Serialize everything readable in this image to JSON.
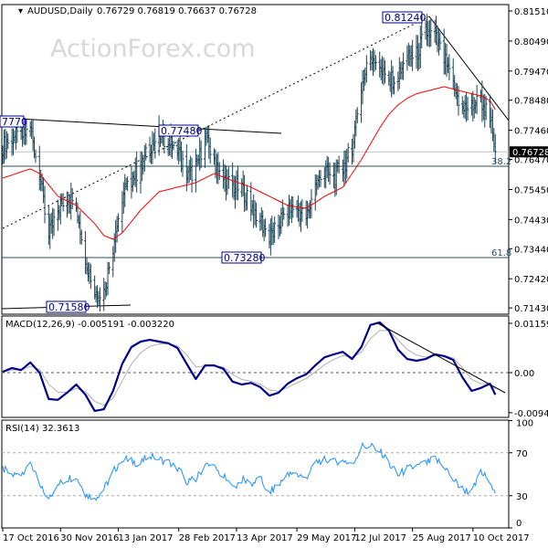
{
  "header": {
    "symbol": "AUDUSD,Daily",
    "ohlc": "0.76729 0.76819 0.76637 0.76728"
  },
  "watermark": "ActionForex.com",
  "colors": {
    "bars": "#1b4457",
    "ma": "#ff0000",
    "macd": "#00008b",
    "signal": "#b0b0b0",
    "rsi": "#1e90ff",
    "fib": "#2f4f4f"
  },
  "chart_data": [
    {
      "type": "ohlc-bar",
      "title": "AUDUSD,Daily",
      "ylim": [
        0.7143,
        0.8151
      ],
      "y_ticks": [
        "0.81510",
        "0.80490",
        "0.79470",
        "0.78480",
        "0.77460",
        "0.76470",
        "0.75450",
        "0.74430",
        "0.73440",
        "0.72420",
        "0.71430"
      ],
      "x_ticks": [
        "17 Oct 2016",
        "30 Nov 2016",
        "13 Jan 2017",
        "28 Feb 2017",
        "13 Apr 2017",
        "29 May 2017",
        "12 Jul 2017",
        "25 Aug 2017",
        "10 Oct 2017"
      ],
      "x_tick_dates": [
        "2016-10-17",
        "2016-11-30",
        "2017-01-13",
        "2017-02-28",
        "2017-04-13",
        "2017-05-29",
        "2017-07-12",
        "2017-08-25",
        "2017-10-10"
      ],
      "dates": [
        "2016-10-17",
        "2016-10-24",
        "2016-10-31",
        "2016-11-07",
        "2016-11-14",
        "2016-11-21",
        "2016-11-28",
        "2016-12-05",
        "2016-12-12",
        "2016-12-19",
        "2016-12-26",
        "2017-01-02",
        "2017-01-09",
        "2017-01-16",
        "2017-01-23",
        "2017-01-30",
        "2017-02-06",
        "2017-02-13",
        "2017-02-20",
        "2017-02-27",
        "2017-03-06",
        "2017-03-13",
        "2017-03-20",
        "2017-03-27",
        "2017-04-03",
        "2017-04-10",
        "2017-04-17",
        "2017-04-24",
        "2017-05-01",
        "2017-05-08",
        "2017-05-15",
        "2017-05-22",
        "2017-05-29",
        "2017-06-05",
        "2017-06-12",
        "2017-06-19",
        "2017-06-26",
        "2017-07-03",
        "2017-07-10",
        "2017-07-17",
        "2017-07-24",
        "2017-07-31",
        "2017-08-07",
        "2017-08-14",
        "2017-08-21",
        "2017-08-28",
        "2017-09-04",
        "2017-09-11",
        "2017-09-18",
        "2017-09-25",
        "2017-10-02",
        "2017-10-09",
        "2017-10-16",
        "2017-10-23",
        "2017-10-27"
      ],
      "close": [
        0.7692,
        0.7723,
        0.7723,
        0.7754,
        0.7599,
        0.7382,
        0.7475,
        0.7522,
        0.7491,
        0.732,
        0.7196,
        0.7196,
        0.7351,
        0.7522,
        0.7584,
        0.7615,
        0.7692,
        0.7723,
        0.7708,
        0.7692,
        0.7584,
        0.7615,
        0.7723,
        0.7646,
        0.7584,
        0.7553,
        0.7553,
        0.7491,
        0.7444,
        0.7376,
        0.7429,
        0.7475,
        0.7481,
        0.7444,
        0.7553,
        0.7599,
        0.7584,
        0.7615,
        0.7692,
        0.7894,
        0.8002,
        0.7971,
        0.7909,
        0.7925,
        0.7987,
        0.8002,
        0.808,
        0.8064,
        0.7987,
        0.7894,
        0.7816,
        0.7832,
        0.7847,
        0.7785,
        0.76728
      ],
      "last_price": "0.76728",
      "ma": [
        0.7584,
        0.7594,
        0.7605,
        0.7615,
        0.7599,
        0.756,
        0.7522,
        0.7506,
        0.7491,
        0.746,
        0.7429,
        0.7389,
        0.7376,
        0.7398,
        0.7436,
        0.7475,
        0.7506,
        0.7537,
        0.7545,
        0.7553,
        0.756,
        0.7568,
        0.7584,
        0.7599,
        0.7587,
        0.7575,
        0.7564,
        0.7553,
        0.7537,
        0.7522,
        0.7506,
        0.7491,
        0.7486,
        0.7481,
        0.7501,
        0.7522,
        0.7537,
        0.7553,
        0.7599,
        0.7646,
        0.77,
        0.7754,
        0.78,
        0.7832,
        0.7855,
        0.787,
        0.7878,
        0.7886,
        0.7894,
        0.7886,
        0.7878,
        0.787,
        0.7863,
        0.7847,
        0.7816
      ],
      "annotations": {
        "swing_labels": [
          "7770",
          "0.77480",
          "0.73280",
          "0.71580",
          "0.81240"
        ],
        "fib_labels": [
          "38.2",
          "61.8"
        ]
      }
    },
    {
      "type": "line",
      "title": "MACD(12,26,9) -0.005191 -0.003220",
      "y_ticks": [
        "0.01159",
        "0.00",
        "-0.009408"
      ],
      "ylim": [
        -0.009408,
        0.01159
      ],
      "macd": [
        0.0002,
        0.0011,
        0.0006,
        0.0024,
        0.0,
        -0.0062,
        -0.0064,
        -0.0047,
        -0.0028,
        -0.0052,
        -0.009,
        -0.0086,
        -0.0043,
        0.0021,
        0.006,
        0.0073,
        0.0077,
        0.0073,
        0.0069,
        0.0058,
        0.0021,
        -0.0015,
        0.0017,
        0.0017,
        0.0009,
        -0.0021,
        -0.0028,
        -0.0024,
        -0.0034,
        -0.0054,
        -0.0047,
        -0.0026,
        -0.0013,
        -0.0004,
        0.0017,
        0.0036,
        0.0043,
        0.0049,
        0.0032,
        0.006,
        0.0112,
        0.0118,
        0.0099,
        0.0054,
        0.0032,
        0.0028,
        0.0032,
        0.0043,
        0.0039,
        0.003,
        -0.0011,
        -0.0043,
        -0.0036,
        -0.0026,
        -0.005191
      ]
    },
    {
      "type": "line",
      "title": "RSI(14) 32.3613",
      "y_ticks": [
        "100",
        "70",
        "30",
        "0"
      ],
      "ylim": [
        0,
        100
      ],
      "levels": [
        70,
        30
      ],
      "rsi": [
        55,
        49,
        50,
        63,
        38,
        29,
        40,
        46,
        48,
        31,
        28,
        36,
        52,
        65,
        62,
        60,
        69,
        64,
        61,
        56,
        44,
        45,
        59,
        56,
        48,
        36,
        45,
        41,
        45,
        33,
        40,
        49,
        50,
        47,
        61,
        64,
        61,
        64,
        58,
        76,
        76,
        72,
        60,
        49,
        55,
        57,
        60,
        64,
        58,
        45,
        36,
        33,
        51,
        45,
        32.36
      ]
    }
  ]
}
